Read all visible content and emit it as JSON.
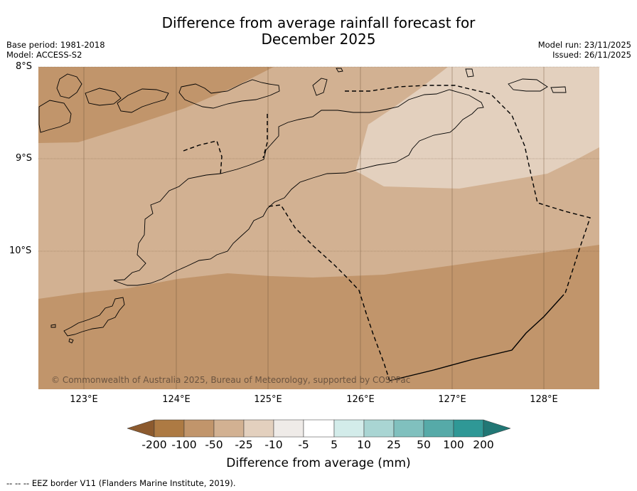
{
  "title": {
    "line1": "Difference from average rainfall forecast for",
    "line2": "December 2025"
  },
  "meta": {
    "base_period": "Base period: 1981-2018",
    "model": "Model: ACCESS-S2",
    "model_run": "Model run: 23/11/2025",
    "issued": "Issued: 26/11/2025"
  },
  "map": {
    "lat_labels": [
      "8°S",
      "9°S",
      "10°S"
    ],
    "lon_labels": [
      "123°E",
      "124°E",
      "125°E",
      "126°E",
      "127°E",
      "128°E"
    ],
    "copyright": "© Commonwealth of Australia 2025, Bureau of Meteorology, supported by COSPPac",
    "colors": {
      "class_minus_100_to_minus_50": "#c1956b",
      "class_minus_50_to_minus_25": "#d2b192",
      "class_minus_25_to_minus_10": "#e3d0be",
      "coastline": "#000000",
      "eez_border": "#000000"
    }
  },
  "colorbar": {
    "labels": [
      "-200",
      "-100",
      "-50",
      "-25",
      "-10",
      "-5",
      "5",
      "10",
      "25",
      "50",
      "100",
      "200"
    ],
    "colors": [
      "#8c5a2e",
      "#ad7a43",
      "#c1956b",
      "#d2b192",
      "#e3d0be",
      "#efebe8",
      "#ffffff",
      "#d3ecea",
      "#a9d5d3",
      "#80c0be",
      "#56aaa8",
      "#2f9896",
      "#217775"
    ],
    "title": "Difference from average (mm)"
  },
  "footer": "--  --  -- EEZ border V11 (Flanders Marine Institute, 2019)."
}
